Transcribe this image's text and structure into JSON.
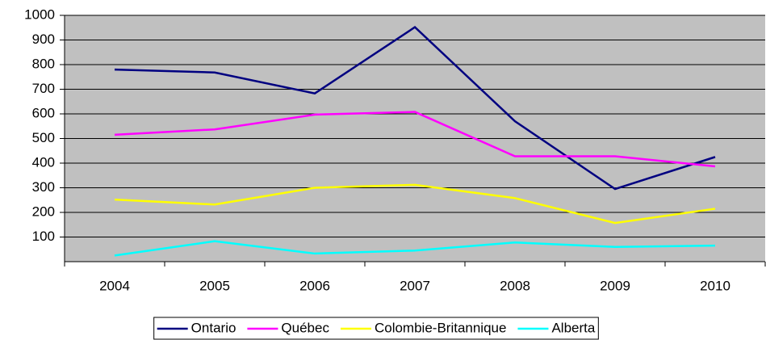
{
  "chart_data": {
    "type": "line",
    "categories": [
      "2004",
      "2005",
      "2006",
      "2007",
      "2008",
      "2009",
      "2010"
    ],
    "series": [
      {
        "name": "Ontario",
        "color": "#000080",
        "values": [
          780,
          768,
          683,
          952,
          570,
          295,
          425
        ]
      },
      {
        "name": "Québec",
        "color": "#ff00ff",
        "values": [
          515,
          537,
          597,
          608,
          428,
          428,
          387
        ]
      },
      {
        "name": "Colombie-Britannique",
        "color": "#ffff00",
        "values": [
          252,
          232,
          300,
          312,
          258,
          157,
          215
        ]
      },
      {
        "name": "Alberta",
        "color": "#00ffff",
        "values": [
          25,
          83,
          33,
          45,
          78,
          60,
          65
        ]
      }
    ],
    "ylim": [
      0,
      1000
    ],
    "yticks": [
      100,
      200,
      300,
      400,
      500,
      600,
      700,
      800,
      900,
      1000
    ],
    "grid": true,
    "plot_background": "#c0c0c0",
    "legend": "bottom"
  }
}
